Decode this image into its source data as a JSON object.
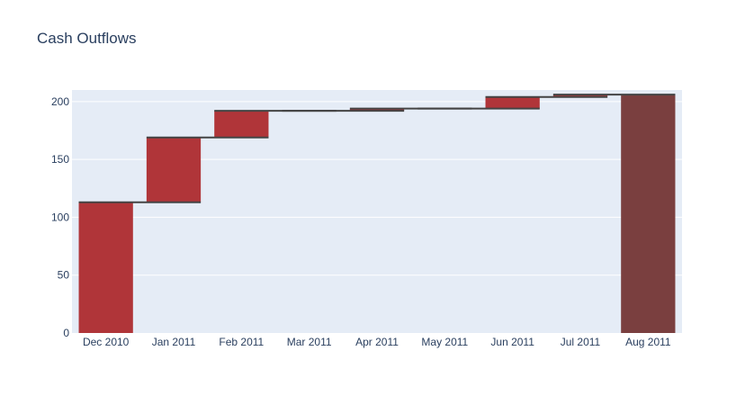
{
  "colors": {
    "plot_background": "#e5ecf6",
    "gridline": "#ffffff",
    "bar": "#b03539",
    "total_bar": "#7a3f3f",
    "connector": "#444444",
    "text": "#2a3f5f"
  },
  "chart_data": {
    "type": "bar",
    "subtype": "waterfall",
    "title": "Cash Outflows",
    "xlabel": "",
    "ylabel": "",
    "ylim": [
      0,
      210
    ],
    "yticks": [
      0,
      50,
      100,
      150,
      200
    ],
    "grid": true,
    "legend": "none",
    "categories": [
      "Dec 2010",
      "Jan 2011",
      "Feb 2011",
      "Mar 2011",
      "Apr 2011",
      "May 2011",
      "Jun 2011",
      "Jul 2011",
      "Aug 2011"
    ],
    "values": [
      113,
      56,
      23,
      0,
      2,
      0,
      10,
      2,
      206
    ],
    "measure": [
      "relative",
      "relative",
      "relative",
      "relative",
      "relative",
      "relative",
      "relative",
      "relative",
      "total"
    ]
  }
}
